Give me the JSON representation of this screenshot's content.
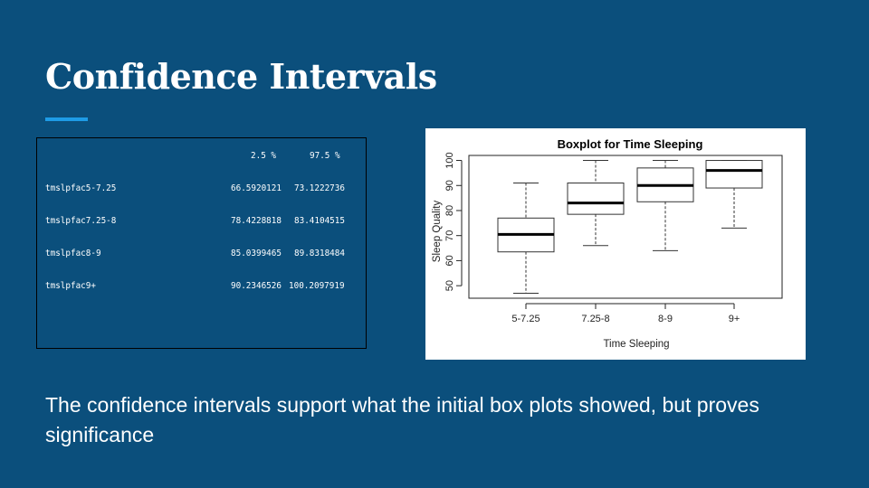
{
  "slide": {
    "title": "Confidence Intervals",
    "caption": "The confidence intervals support what the initial box plots showed, but proves significance"
  },
  "ci_table": {
    "headers": [
      "2.5 %",
      "97.5 %"
    ],
    "rows": [
      {
        "label": "tmslpfac5-7.25",
        "low": "66.5920121",
        "high": "73.1222736"
      },
      {
        "label": "tmslpfac7.25-8",
        "low": "78.4228818",
        "high": "83.4104515"
      },
      {
        "label": "tmslpfac8-9",
        "low": "85.0399465",
        "high": "89.8318484"
      },
      {
        "label": "tmslpfac9+",
        "low": "90.2346526",
        "high": "100.2097919"
      }
    ]
  },
  "chart_data": {
    "type": "boxplot",
    "title": "Boxplot for Time Sleeping",
    "xlabel": "Time Sleeping",
    "ylabel": "Sleep Quality",
    "ylim": [
      45,
      102
    ],
    "yticks": [
      50,
      60,
      70,
      80,
      90,
      100
    ],
    "grid": false,
    "categories": [
      "5-7.25",
      "7.25-8",
      "8-9",
      "9+"
    ],
    "boxes": [
      {
        "min": 47,
        "q1": 63.5,
        "median": 70.5,
        "q3": 77,
        "max": 91
      },
      {
        "min": 66,
        "q1": 78.5,
        "median": 83,
        "q3": 91,
        "max": 100
      },
      {
        "min": 64,
        "q1": 83.5,
        "median": 90,
        "q3": 97,
        "max": 100
      },
      {
        "min": 73,
        "q1": 89,
        "median": 96,
        "q3": 100,
        "max": 100
      }
    ]
  },
  "colors": {
    "background": "#0b4f7c",
    "accent": "#1e9be6"
  }
}
